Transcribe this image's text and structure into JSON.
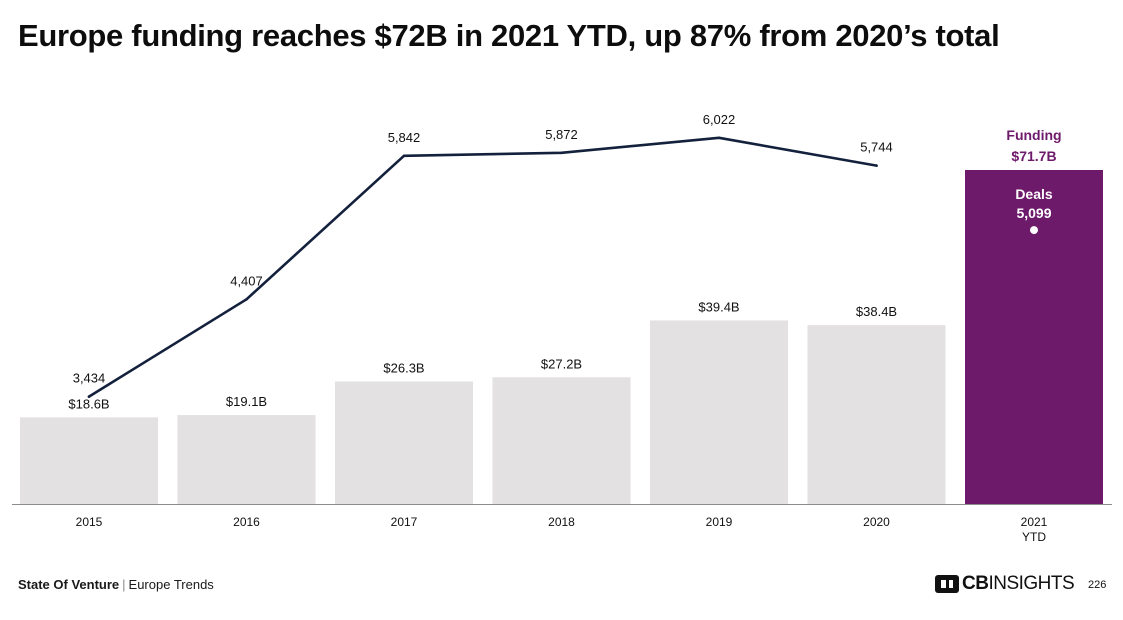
{
  "title": "Europe funding reaches $72B in 2021 YTD, up 87% from 2020’s total",
  "footer": {
    "brand": "State Of Venture",
    "separator": "|",
    "section": "Europe Trends",
    "logo_bold": "CB",
    "logo_regular": "INSIGHTS",
    "logo_icon": "cb-insights-logo-icon",
    "page_number": "226"
  },
  "colors": {
    "bar": "#e3e1e2",
    "bar_highlight": "#6e1a6b",
    "line": "#14213d",
    "highlight_text": "#6e1a6b"
  },
  "chart_data": {
    "type": "bar",
    "categories": [
      "2015",
      "2016",
      "2017",
      "2018",
      "2019",
      "2020",
      "2021\nYTD"
    ],
    "series": [
      {
        "kind": "bar",
        "values": [
          18.6,
          19.1,
          26.3,
          27.2,
          39.4,
          38.4,
          71.7
        ],
        "labels": [
          "$18.6B",
          "$19.1B",
          "$26.3B",
          "$27.2B",
          "$39.4B",
          "$38.4B",
          "$71.7B"
        ],
        "highlight_index": 6,
        "highlight_title": "Funding"
      },
      {
        "kind": "line",
        "values": [
          3434,
          4407,
          5842,
          5872,
          6022,
          5744,
          5099
        ],
        "labels": [
          "3,434",
          "4,407",
          "5,842",
          "5,872",
          "6,022",
          "5,744",
          "5,099"
        ],
        "highlight_index": 6,
        "highlight_title": "Deals"
      }
    ],
    "bar_axis": {
      "min": 0,
      "max": 71.7
    },
    "line_axis": {
      "min": 3000,
      "max": 7000
    },
    "legend": "none",
    "grid": false,
    "xlabel": "",
    "ylabel": ""
  }
}
